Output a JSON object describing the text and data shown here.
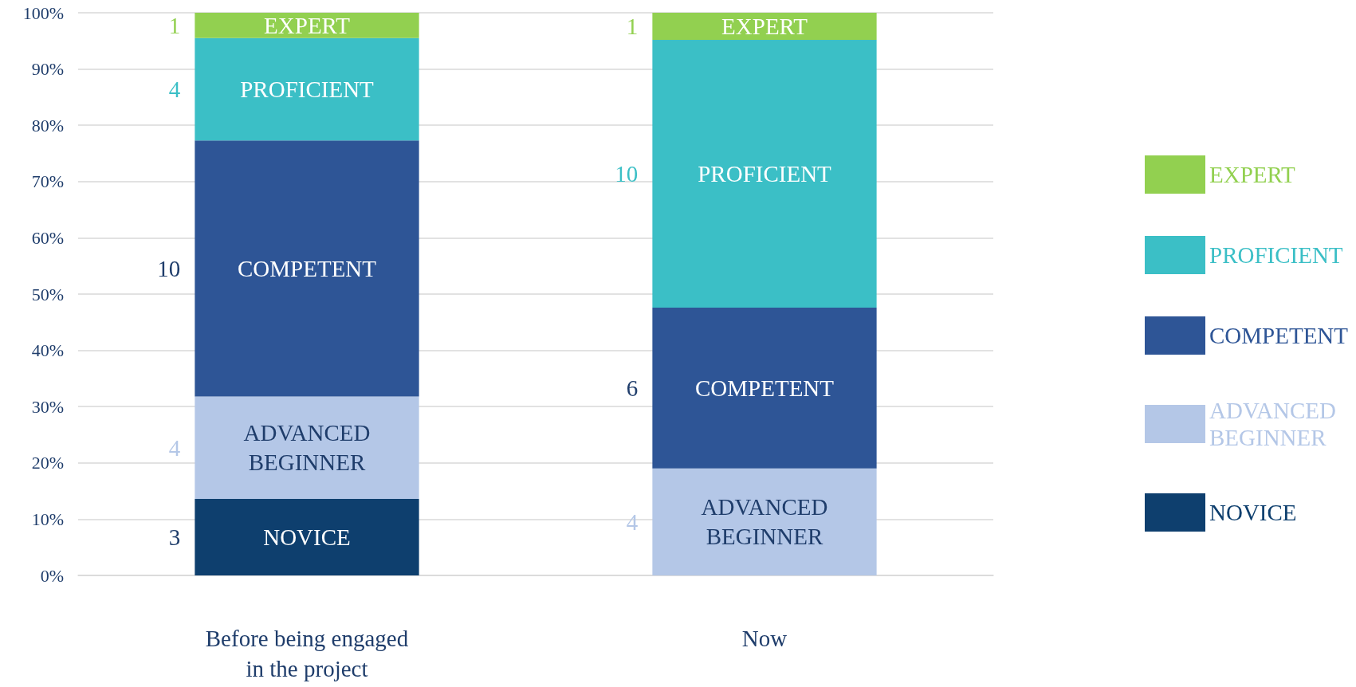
{
  "chart_data": {
    "type": "bar",
    "stacked": true,
    "categories": [
      "Before being engaged in the project",
      "Now"
    ],
    "ylim": [
      0,
      100
    ],
    "yticks": [
      {
        "value": 0,
        "label": "0%"
      },
      {
        "value": 10,
        "label": "10%"
      },
      {
        "value": 20,
        "label": "20%"
      },
      {
        "value": 30,
        "label": "30%"
      },
      {
        "value": 40,
        "label": "40%"
      },
      {
        "value": 50,
        "label": "50%"
      },
      {
        "value": 60,
        "label": "60%"
      },
      {
        "value": 70,
        "label": "70%"
      },
      {
        "value": 80,
        "label": "80%"
      },
      {
        "value": 90,
        "label": "90%"
      },
      {
        "value": 100,
        "label": "100%"
      }
    ],
    "grid": "y",
    "legend": "right",
    "series": [
      {
        "name": "NOVICE",
        "color": "#0e3f6e",
        "values": [
          13.6,
          null
        ]
      },
      {
        "name": "ADVANCED BEGINNER",
        "color": "#b4c7e7",
        "values": [
          18.2,
          19.0
        ]
      },
      {
        "name": "COMPETENT",
        "color": "#2e5596",
        "values": [
          45.5,
          28.6
        ]
      },
      {
        "name": "PROFICIENT",
        "color": "#3bbfc6",
        "values": [
          18.2,
          47.6
        ]
      },
      {
        "name": "EXPERT",
        "color": "#92d050",
        "values": [
          4.5,
          4.8
        ]
      }
    ],
    "annotations": [
      "3",
      "4",
      "10",
      "4",
      "1",
      "4",
      "6",
      "10",
      "1"
    ]
  }
}
